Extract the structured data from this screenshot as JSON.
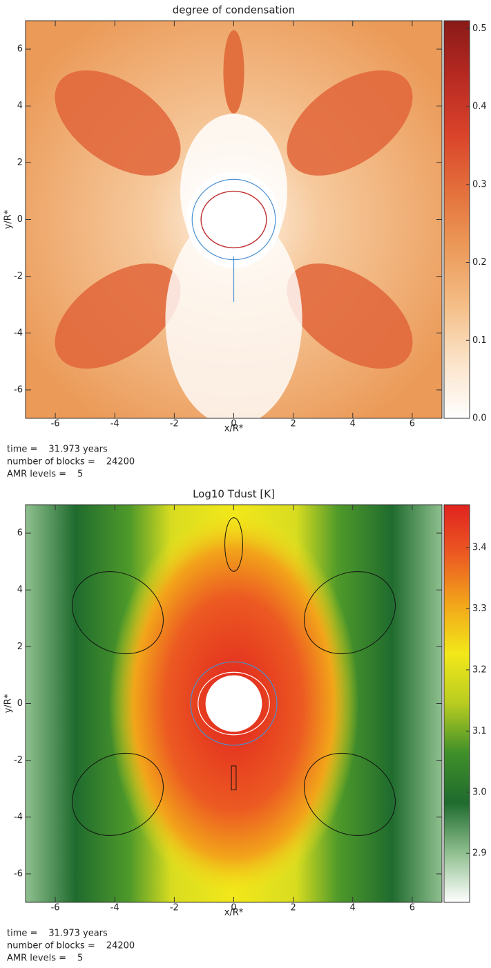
{
  "chart_data": [
    {
      "type": "heatmap",
      "title": "degree of condensation",
      "xlabel": "x/R*",
      "ylabel": "y/R*",
      "xlim": [
        -7,
        7
      ],
      "ylim": [
        -7,
        7
      ],
      "xticks": [
        -6,
        -4,
        -2,
        0,
        2,
        4,
        6
      ],
      "yticks": [
        -6,
        -4,
        -2,
        0,
        2,
        4,
        6
      ],
      "colorbar_lim": [
        0,
        0.51
      ],
      "colorbar_ticks": [
        {
          "value": 0,
          "label": "0.0"
        },
        0.1,
        0.2,
        0.3,
        0.4,
        0.5
      ],
      "colormap": [
        "#ffffff",
        "#fbe3c8",
        "#f4bd86",
        "#ec9a5a",
        "#e4703c",
        "#d9432a",
        "#b82a22",
        "#8a1a18"
      ],
      "annotations": [
        {
          "label": "time =",
          "value": "31.973 years"
        },
        {
          "label": "number of blocks =",
          "value": 24200
        },
        {
          "label": "AMR levels =",
          "value": 5
        }
      ]
    },
    {
      "type": "heatmap",
      "title": "Log10 Tdust [K]",
      "xlabel": "x/R*",
      "ylabel": "y/R*",
      "xlim": [
        -7,
        7
      ],
      "ylim": [
        -7,
        7
      ],
      "xticks": [
        -6,
        -4,
        -2,
        0,
        2,
        4,
        6
      ],
      "yticks": [
        -6,
        -4,
        -2,
        0,
        2,
        4,
        6
      ],
      "colorbar_lim": [
        2.82,
        3.47
      ],
      "colorbar_ticks": [
        {
          "value": 2.9,
          "label": "2.9"
        },
        {
          "value": 3,
          "label": "3.0"
        },
        3.1,
        3.2,
        3.3,
        3.4
      ],
      "colormap": [
        "#ffffff",
        "#8fbf8f",
        "#1f6b2e",
        "#3f8f2a",
        "#b8cc20",
        "#f2e81a",
        "#f2a51a",
        "#ec5a22",
        "#e0221e"
      ],
      "annotations": [
        {
          "label": "time =",
          "value": "31.973 years"
        },
        {
          "label": "number of blocks =",
          "value": 24200
        },
        {
          "label": "AMR levels =",
          "value": 5
        }
      ]
    }
  ]
}
